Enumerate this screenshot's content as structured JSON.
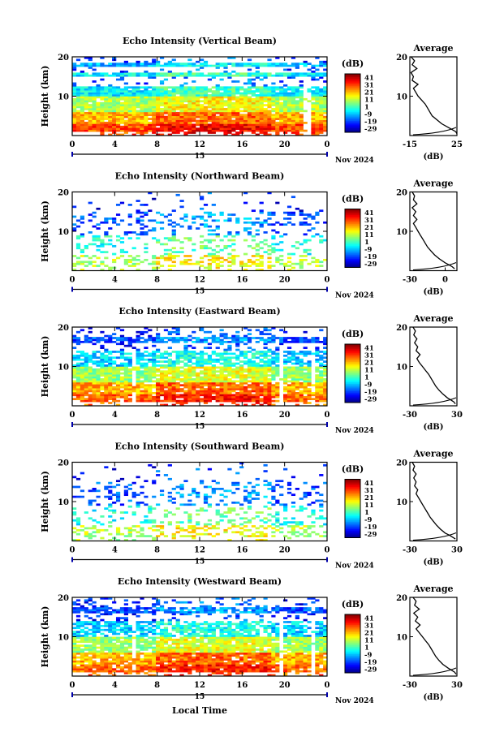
{
  "figure": {
    "date_label": "Nov 2024",
    "date_marker": "15",
    "xlabel": "Local Time",
    "colorbar_label": "(dB)",
    "colorbar_ticks": [
      "41",
      "31",
      "21",
      "11",
      "1",
      "-9",
      "-19",
      "-29"
    ],
    "avg_title": "Average",
    "avg_xlabel": "(dB)"
  },
  "chart_data": [
    {
      "type": "heatmap",
      "title": "Echo Intensity (Vertical Beam)",
      "xlabel": "",
      "ylabel": "Height (km)",
      "x_ticks": [
        "0",
        "4",
        "8",
        "12",
        "16",
        "20",
        "0"
      ],
      "y_ticks": [
        "20",
        "10"
      ],
      "xlim": [
        0,
        24
      ],
      "ylim": [
        0,
        20
      ],
      "colorbar": {
        "label": "(dB)",
        "range": [
          -34,
          46
        ],
        "ticks": [
          41,
          31,
          21,
          11,
          1,
          -9,
          -19,
          -29
        ]
      },
      "profile": {
        "title": "Average",
        "xlabel": "(dB)",
        "x_ticks": [
          "-15",
          "25"
        ],
        "xlim": [
          -15,
          25
        ],
        "y_ticks": [
          "20",
          "10"
        ],
        "ylim": [
          0,
          20
        ],
        "height_km": [
          0.5,
          1,
          1.5,
          2,
          3,
          4,
          5,
          6,
          7,
          8,
          9,
          10,
          11,
          12,
          13,
          14,
          15,
          16,
          17,
          18,
          19,
          20
        ],
        "values_db": [
          25,
          24,
          21,
          18,
          12,
          8,
          4,
          2,
          0,
          -2,
          -5,
          -8,
          -10,
          -12,
          -8,
          -13,
          -12,
          -14,
          -9,
          -13,
          -11,
          -14
        ]
      }
    },
    {
      "type": "heatmap",
      "title": "Echo Intensity (Northward Beam)",
      "xlabel": "",
      "ylabel": "Height (km)",
      "x_ticks": [
        "0",
        "4",
        "8",
        "12",
        "16",
        "20",
        "0"
      ],
      "y_ticks": [
        "20",
        "10"
      ],
      "xlim": [
        0,
        24
      ],
      "ylim": [
        0,
        20
      ],
      "colorbar": {
        "label": "(dB)",
        "range": [
          -34,
          46
        ],
        "ticks": [
          41,
          31,
          21,
          11,
          1,
          -9,
          -19,
          -29
        ]
      },
      "profile": {
        "title": "Average",
        "xlabel": "(dB)",
        "x_ticks": [
          "-30",
          "0"
        ],
        "xlim": [
          -30,
          10
        ],
        "y_ticks": [
          "20",
          "10"
        ],
        "ylim": [
          0,
          20
        ],
        "height_km": [
          0.5,
          1,
          1.5,
          2,
          3,
          4,
          5,
          6,
          7,
          8,
          9,
          10,
          11,
          12,
          13,
          14,
          15,
          16,
          17,
          18,
          19,
          20
        ],
        "values_db": [
          8,
          6,
          3,
          0,
          -5,
          -9,
          -12,
          -15,
          -17,
          -19,
          -21,
          -23,
          -25,
          -27,
          -24,
          -27,
          -25,
          -28,
          -24,
          -27,
          -26,
          -28
        ]
      }
    },
    {
      "type": "heatmap",
      "title": "Echo Intensity (Eastward Beam)",
      "xlabel": "",
      "ylabel": "Height (km)",
      "x_ticks": [
        "0",
        "4",
        "8",
        "12",
        "16",
        "20",
        "0"
      ],
      "y_ticks": [
        "20",
        "10"
      ],
      "xlim": [
        0,
        24
      ],
      "ylim": [
        0,
        20
      ],
      "colorbar": {
        "label": "(dB)",
        "range": [
          -34,
          46
        ],
        "ticks": [
          41,
          31,
          21,
          11,
          1,
          -9,
          -19,
          -29
        ]
      },
      "profile": {
        "title": "Average",
        "xlabel": "(dB)",
        "x_ticks": [
          "-30",
          "30"
        ],
        "xlim": [
          -30,
          30
        ],
        "y_ticks": [
          "20",
          "10"
        ],
        "ylim": [
          0,
          20
        ],
        "height_km": [
          0.5,
          1,
          1.5,
          2,
          3,
          4,
          5,
          6,
          7,
          8,
          9,
          10,
          11,
          12,
          13,
          14,
          15,
          16,
          17,
          18,
          19,
          20
        ],
        "values_db": [
          28,
          26,
          22,
          18,
          12,
          7,
          3,
          0,
          -3,
          -6,
          -10,
          -14,
          -18,
          -21,
          -17,
          -22,
          -20,
          -24,
          -21,
          -25,
          -23,
          -26
        ]
      }
    },
    {
      "type": "heatmap",
      "title": "Echo Intensity (Southward Beam)",
      "xlabel": "",
      "ylabel": "Height (km)",
      "x_ticks": [
        "0",
        "4",
        "8",
        "12",
        "16",
        "20",
        "0"
      ],
      "y_ticks": [
        "20",
        "10"
      ],
      "xlim": [
        0,
        24
      ],
      "ylim": [
        0,
        20
      ],
      "colorbar": {
        "label": "(dB)",
        "range": [
          -34,
          46
        ],
        "ticks": [
          41,
          31,
          21,
          11,
          1,
          -9,
          -19,
          -29
        ]
      },
      "profile": {
        "title": "Average",
        "xlabel": "(dB)",
        "x_ticks": [
          "-30",
          "30"
        ],
        "xlim": [
          -30,
          30
        ],
        "y_ticks": [
          "20",
          "10"
        ],
        "ylim": [
          0,
          20
        ],
        "height_km": [
          0.5,
          1,
          1.5,
          2,
          3,
          4,
          5,
          6,
          7,
          8,
          9,
          10,
          11,
          12,
          13,
          14,
          15,
          16,
          17,
          18,
          19,
          20
        ],
        "values_db": [
          28,
          24,
          20,
          15,
          9,
          4,
          0,
          -4,
          -7,
          -10,
          -13,
          -16,
          -19,
          -22,
          -20,
          -24,
          -22,
          -25,
          -22,
          -26,
          -24,
          -27
        ]
      }
    },
    {
      "type": "heatmap",
      "title": "Echo Intensity (Westward Beam)",
      "xlabel": "Local Time",
      "ylabel": "Height (km)",
      "x_ticks": [
        "0",
        "4",
        "8",
        "12",
        "16",
        "20",
        "0"
      ],
      "y_ticks": [
        "20",
        "10"
      ],
      "xlim": [
        0,
        24
      ],
      "ylim": [
        0,
        20
      ],
      "colorbar": {
        "label": "(dB)",
        "range": [
          -34,
          46
        ],
        "ticks": [
          41,
          31,
          21,
          11,
          1,
          -9,
          -19,
          -29
        ]
      },
      "profile": {
        "title": "Average",
        "xlabel": "(dB)",
        "x_ticks": [
          "-30",
          "30"
        ],
        "xlim": [
          -30,
          30
        ],
        "y_ticks": [
          "20",
          "10"
        ],
        "ylim": [
          0,
          20
        ],
        "height_km": [
          0.5,
          1,
          1.5,
          2,
          3,
          4,
          5,
          6,
          7,
          8,
          9,
          10,
          11,
          12,
          13,
          14,
          15,
          16,
          17,
          18,
          19,
          20
        ],
        "values_db": [
          29,
          27,
          23,
          19,
          12,
          7,
          3,
          0,
          -3,
          -6,
          -10,
          -14,
          -18,
          -22,
          -17,
          -23,
          -20,
          -25,
          -18,
          -24,
          -22,
          -26
        ]
      }
    }
  ]
}
